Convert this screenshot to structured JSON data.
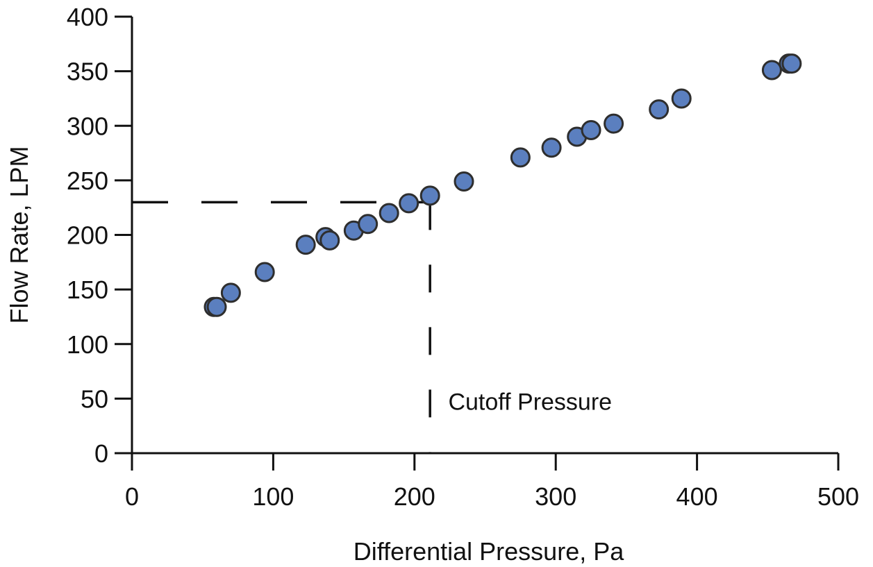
{
  "chart_data": {
    "type": "scatter",
    "title": "",
    "xlabel": "Differential Pressure, Pa",
    "ylabel": "Flow Rate, LPM",
    "xlim": [
      0,
      500
    ],
    "ylim": [
      0,
      400
    ],
    "x_ticks": [
      0,
      100,
      200,
      300,
      400,
      500
    ],
    "y_ticks": [
      0,
      50,
      100,
      150,
      200,
      250,
      300,
      350,
      400
    ],
    "grid": false,
    "legend": "none",
    "marker_color": "#5b7fbf",
    "marker_edge_color": "#2e2e2e",
    "series": [
      {
        "points": [
          [
            58,
            134
          ],
          [
            60,
            134
          ],
          [
            70,
            147
          ],
          [
            94,
            166
          ],
          [
            123,
            191
          ],
          [
            137,
            198
          ],
          [
            140,
            195
          ],
          [
            157,
            204
          ],
          [
            167,
            210
          ],
          [
            182,
            220
          ],
          [
            196,
            229
          ],
          [
            211,
            236
          ],
          [
            235,
            249
          ],
          [
            275,
            271
          ],
          [
            297,
            280
          ],
          [
            315,
            290
          ],
          [
            325,
            296
          ],
          [
            341,
            302
          ],
          [
            373,
            315
          ],
          [
            389,
            325
          ],
          [
            453,
            351
          ],
          [
            465,
            357
          ],
          [
            467,
            357
          ]
        ]
      }
    ],
    "reference_lines": {
      "horizontal_y": 230,
      "horizontal_x_end": 211,
      "vertical_x": 211,
      "vertical_y_end": 230,
      "style": "dashed",
      "color": "#111111"
    },
    "annotation": {
      "text": "Cutoff Pressure",
      "x": 220,
      "y": 48
    }
  }
}
